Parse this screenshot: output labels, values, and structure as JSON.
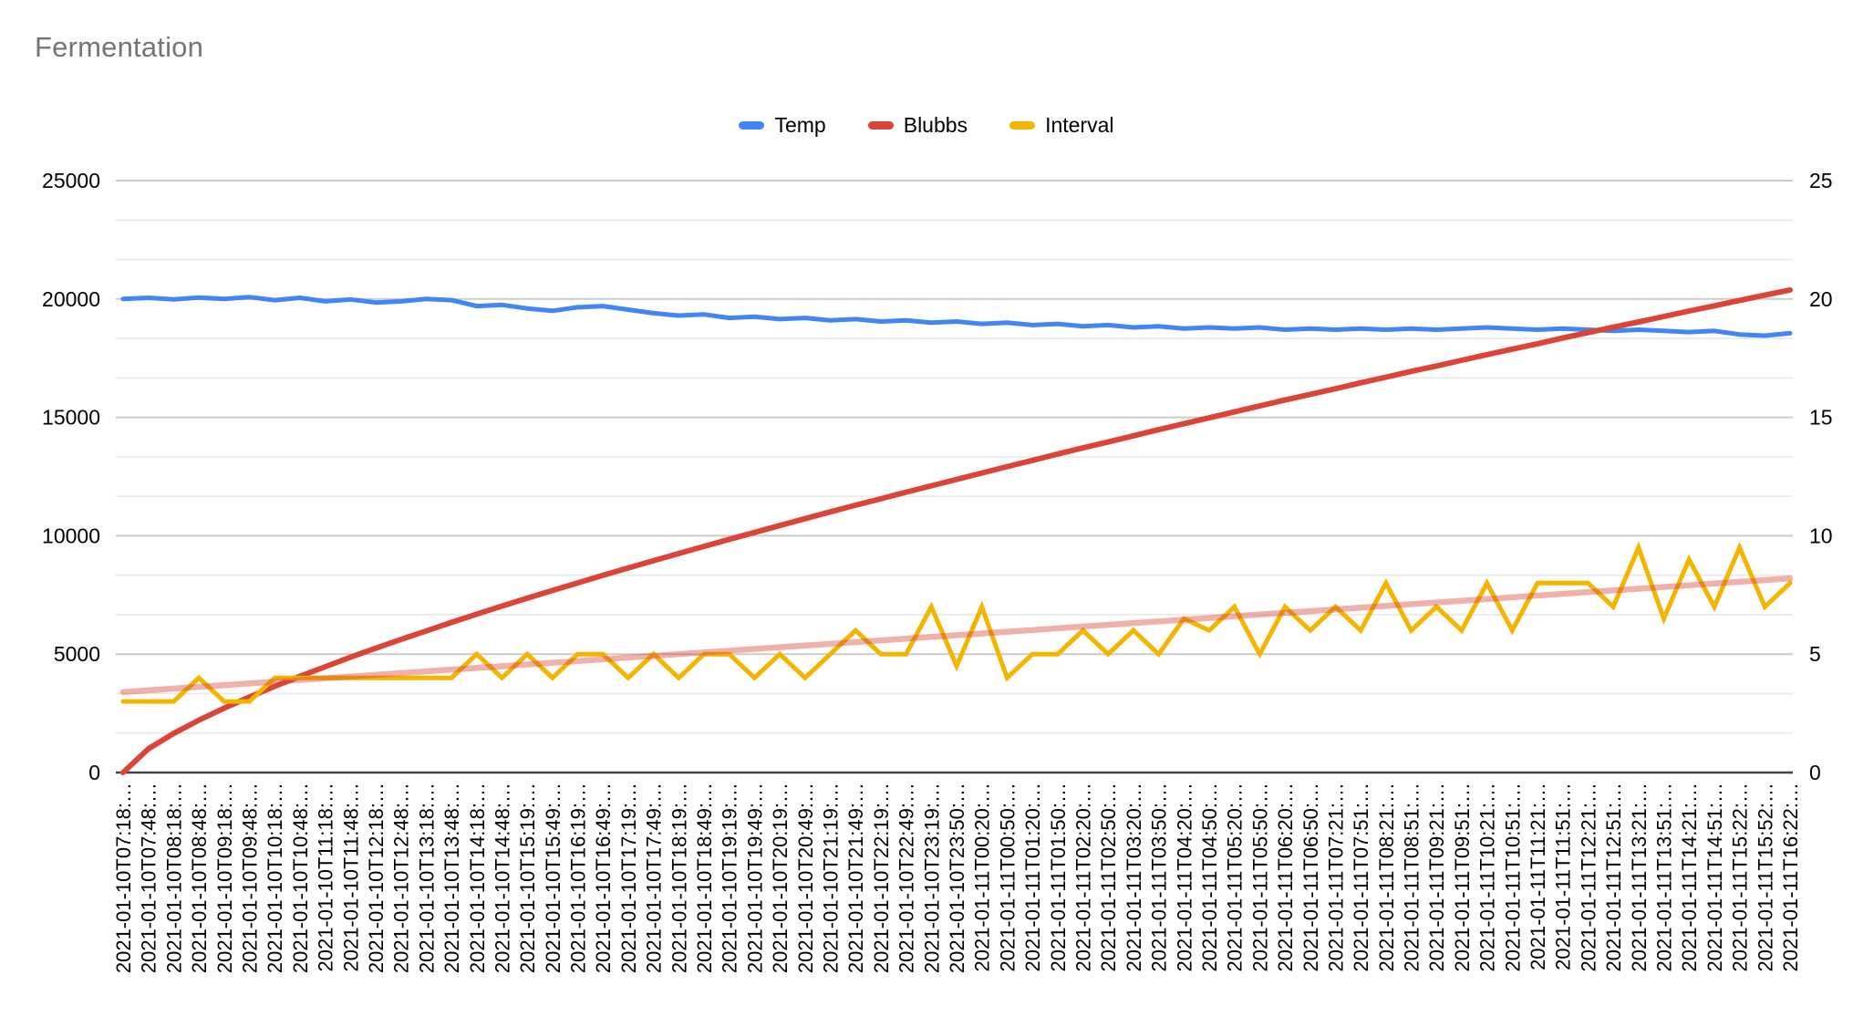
{
  "title": "Fermentation",
  "legend": [
    {
      "label": "Temp",
      "color": "#4285F4"
    },
    {
      "label": "Blubbs",
      "color": "#DB4437"
    },
    {
      "label": "Interval",
      "color": "#F4B400"
    }
  ],
  "colors": {
    "title_text": "#757575",
    "axis_text": "#000000",
    "major_grid": "#cccccc",
    "minor_grid": "#e8e8e8",
    "baseline": "#424242",
    "trendline": "rgba(219,68,55,0.42)"
  },
  "chart_data": {
    "type": "line",
    "title": "Fermentation",
    "legend_position": "top",
    "grid": {
      "major_on": true,
      "minor_divisions": 3
    },
    "left_axis": {
      "range": [
        0,
        25000
      ],
      "ticks": [
        0,
        5000,
        10000,
        15000,
        20000,
        25000
      ]
    },
    "right_axis": {
      "range": [
        0,
        25
      ],
      "ticks": [
        0,
        5,
        10,
        15,
        20,
        25
      ]
    },
    "x_labels": [
      "2021-01-10T07:18:…",
      "2021-01-10T07:48:…",
      "2021-01-10T08:18:…",
      "2021-01-10T08:48:…",
      "2021-01-10T09:18:…",
      "2021-01-10T09:48:…",
      "2021-01-10T10:18:…",
      "2021-01-10T10:48:…",
      "2021-01-10T11:18:…",
      "2021-01-10T11:48:…",
      "2021-01-10T12:18:…",
      "2021-01-10T12:48:…",
      "2021-01-10T13:18:…",
      "2021-01-10T13:48:…",
      "2021-01-10T14:18:…",
      "2021-01-10T14:48:…",
      "2021-01-10T15:19:…",
      "2021-01-10T15:49:…",
      "2021-01-10T16:19:…",
      "2021-01-10T16:49:…",
      "2021-01-10T17:19:…",
      "2021-01-10T17:49:…",
      "2021-01-10T18:19:…",
      "2021-01-10T18:49:…",
      "2021-01-10T19:19:…",
      "2021-01-10T19:49:…",
      "2021-01-10T20:19:…",
      "2021-01-10T20:49:…",
      "2021-01-10T21:19:…",
      "2021-01-10T21:49:…",
      "2021-01-10T22:19:…",
      "2021-01-10T22:49:…",
      "2021-01-10T23:19:…",
      "2021-01-10T23:50:…",
      "2021-01-11T00:20:…",
      "2021-01-11T00:50:…",
      "2021-01-11T01:20:…",
      "2021-01-11T01:50:…",
      "2021-01-11T02:20:…",
      "2021-01-11T02:50:…",
      "2021-01-11T03:20:…",
      "2021-01-11T03:50:…",
      "2021-01-11T04:20:…",
      "2021-01-11T04:50:…",
      "2021-01-11T05:20:…",
      "2021-01-11T05:50:…",
      "2021-01-11T06:20:…",
      "2021-01-11T06:50:…",
      "2021-01-11T07:21:…",
      "2021-01-11T07:51:…",
      "2021-01-11T08:21:…",
      "2021-01-11T08:51:…",
      "2021-01-11T09:21:…",
      "2021-01-11T09:51:…",
      "2021-01-11T10:21:…",
      "2021-01-11T10:51:…",
      "2021-01-11T11:21:…",
      "2021-01-11T11:51:…",
      "2021-01-11T12:21:…",
      "2021-01-11T12:51:…",
      "2021-01-11T13:21:…",
      "2021-01-11T13:51:…",
      "2021-01-11T14:21:…",
      "2021-01-11T14:51:…",
      "2021-01-11T15:22:…",
      "2021-01-11T15:52:…",
      "2021-01-11T16:22:…"
    ],
    "series": [
      {
        "name": "Temp",
        "axis": "left",
        "color": "#4285F4",
        "values": [
          20000,
          20050,
          19980,
          20060,
          20000,
          20080,
          19950,
          20050,
          19900,
          19980,
          19850,
          19900,
          20000,
          19950,
          19700,
          19750,
          19600,
          19500,
          19650,
          19700,
          19550,
          19400,
          19300,
          19350,
          19200,
          19250,
          19150,
          19200,
          19100,
          19150,
          19050,
          19100,
          19000,
          19050,
          18950,
          19000,
          18900,
          18950,
          18850,
          18900,
          18800,
          18850,
          18750,
          18800,
          18750,
          18800,
          18700,
          18750,
          18700,
          18750,
          18700,
          18750,
          18700,
          18750,
          18800,
          18750,
          18700,
          18750,
          18700,
          18650,
          18700,
          18650,
          18600,
          18650,
          18500,
          18450,
          18550
        ]
      },
      {
        "name": "Blubbs",
        "axis": "left",
        "color": "#DB4437",
        "values": [
          0,
          1000,
          1650,
          2210,
          2720,
          3190,
          3640,
          4060,
          4470,
          4870,
          5250,
          5620,
          5980,
          6340,
          6690,
          7030,
          7360,
          7690,
          8010,
          8330,
          8640,
          8950,
          9250,
          9550,
          9850,
          10140,
          10430,
          10720,
          11010,
          11290,
          11560,
          11840,
          12110,
          12380,
          12650,
          12920,
          13180,
          13450,
          13710,
          13960,
          14220,
          14480,
          14730,
          14980,
          15230,
          15480,
          15730,
          15970,
          16210,
          16460,
          16700,
          16940,
          17170,
          17410,
          17650,
          17880,
          18110,
          18350,
          18580,
          18810,
          19030,
          19260,
          19490,
          19710,
          19940,
          20160,
          20380
        ]
      },
      {
        "name": "Interval",
        "axis": "right",
        "color": "#F4B400",
        "values": [
          3,
          3,
          3,
          4,
          3,
          3,
          4,
          4,
          4,
          4,
          4,
          4,
          4,
          4,
          5,
          4,
          5,
          4,
          5,
          5,
          4,
          5,
          4,
          5,
          5,
          4,
          5,
          4,
          5,
          6,
          5,
          5,
          7,
          4.5,
          7,
          4,
          5,
          5,
          6,
          5,
          6,
          5,
          6.5,
          6,
          7,
          5,
          7,
          6,
          7,
          6,
          8,
          6,
          7,
          6,
          8,
          6,
          8,
          8,
          8,
          7,
          9.5,
          6.5,
          9,
          7,
          9.5,
          7,
          8
        ]
      },
      {
        "name": "Interval trendline",
        "axis": "right",
        "style": "trendline",
        "color": "rgba(219,68,55,0.42)",
        "endpoints": [
          3.4,
          8.2
        ]
      }
    ]
  }
}
